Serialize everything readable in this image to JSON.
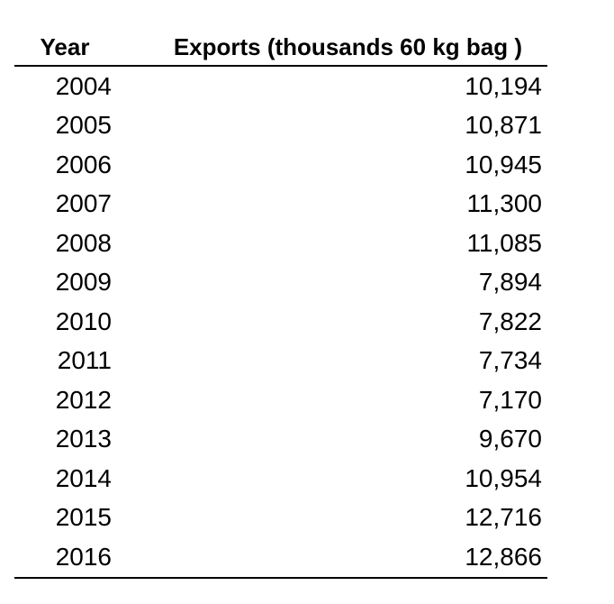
{
  "table": {
    "headers": {
      "year": "Year",
      "exports": "Exports (thousands 60 kg bag )"
    },
    "rows": [
      {
        "year": "2004",
        "exports": "10,194"
      },
      {
        "year": "2005",
        "exports": "10,871"
      },
      {
        "year": "2006",
        "exports": "10,945"
      },
      {
        "year": "2007",
        "exports": "11,300"
      },
      {
        "year": "2008",
        "exports": "11,085"
      },
      {
        "year": "2009",
        "exports": "7,894"
      },
      {
        "year": "2010",
        "exports": "7,822"
      },
      {
        "year": "2011",
        "exports": "7,734"
      },
      {
        "year": "2012",
        "exports": "7,170"
      },
      {
        "year": "2013",
        "exports": "9,670"
      },
      {
        "year": "2014",
        "exports": "10,954"
      },
      {
        "year": "2015",
        "exports": "12,716"
      },
      {
        "year": "2016",
        "exports": "12,866"
      }
    ]
  }
}
